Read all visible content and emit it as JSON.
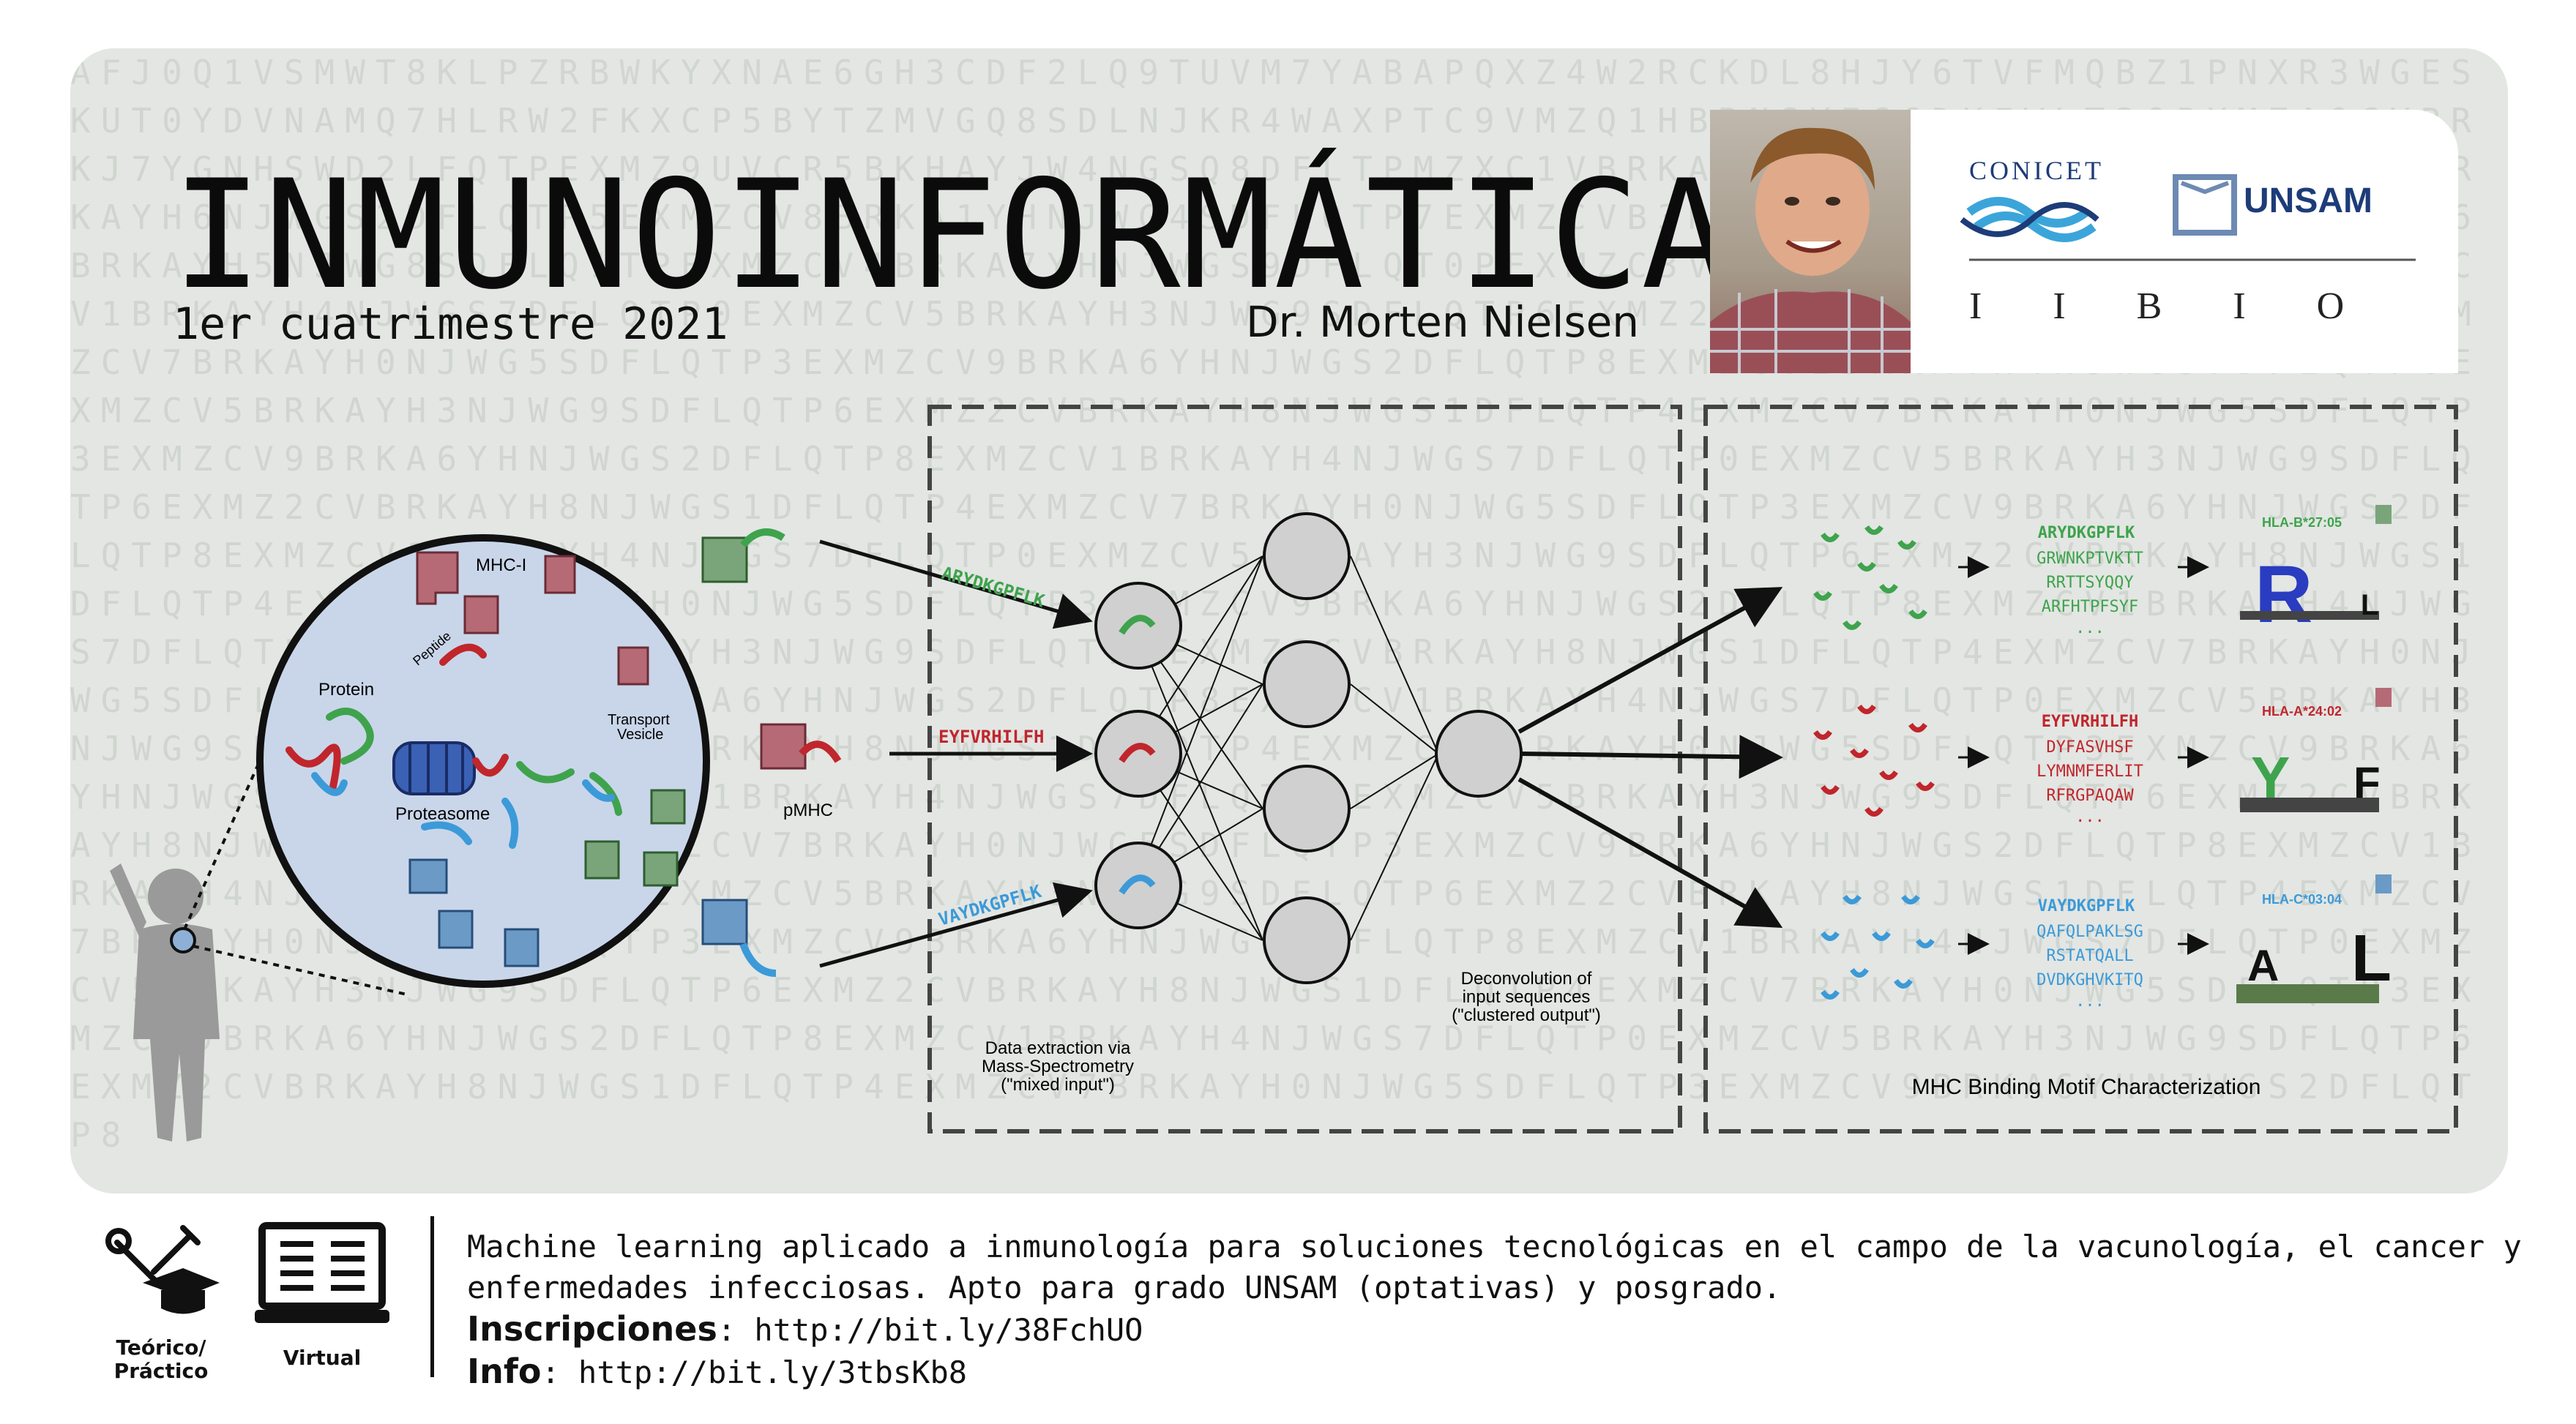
{
  "title": "INMUNOINFORMÁTICA",
  "semester": "1er cuatrimestre 2021",
  "professor": "Dr. Morten Nielsen",
  "logos": {
    "conicet": "CONICET",
    "unsam": "UNSAM",
    "iibio": "I I B I O"
  },
  "diagram": {
    "cell_labels": {
      "mhc1": "MHC-I",
      "peptide": "Peptide",
      "protein": "Protein",
      "transport": [
        "Transport",
        "Vesicle"
      ],
      "proteasome": "Proteasome",
      "pmhc": "pMHC"
    },
    "input_peptides": [
      {
        "seq": "ARYDKGPFLK",
        "color": "#3fa34d"
      },
      {
        "seq": "EYFVRHILFH",
        "color": "#c0262c"
      },
      {
        "seq": "VAYDKGPFLK",
        "color": "#3c9ad8"
      }
    ],
    "extraction_caption": [
      "Data extraction via",
      "Mass-Spectrometry",
      "(\"mixed input\")"
    ],
    "deconvolution_caption": [
      "Deconvolution of",
      "input sequences",
      "(\"clustered output\")"
    ],
    "motif_caption": "MHC Binding Motif Characterization",
    "clusters": [
      {
        "color": "#3fa34d",
        "lead": "ARYDKGPFLK",
        "seqs": [
          "GRWNKPTVKTT",
          "RRTTSYQQY",
          "ARFHTPFSYF"
        ],
        "allele": "HLA-B*27:05"
      },
      {
        "color": "#c0262c",
        "lead": "EYFVRHILFH",
        "seqs": [
          "DYFASVHSF",
          "LYMNMFERLIT",
          "RFRGPAQAW"
        ],
        "allele": "HLA-A*24:02"
      },
      {
        "color": "#3c9ad8",
        "lead": "VAYDKGPFLK",
        "seqs": [
          "QAFQLPAKLSG",
          "RSTATQALL",
          "DVDKGHVKITQ"
        ],
        "allele": "HLA-C*03:04"
      }
    ],
    "ellipsis": "..."
  },
  "footer": {
    "icon1_label": [
      "Teórico/",
      "Práctico"
    ],
    "icon2_label": "Virtual",
    "description_line1": "Machine learning aplicado a inmunología para soluciones tecnológicas en el campo de la vacunología, el cancer y",
    "description_line2": "enfermedades infecciosas. Apto para grado UNSAM (optativas) y posgrado.",
    "inscripciones_label": "Inscripciones",
    "inscripciones_url": ": http://bit.ly/38FchUO",
    "info_label": "Info",
    "info_url": ": http://bit.ly/3tbsKb8"
  }
}
